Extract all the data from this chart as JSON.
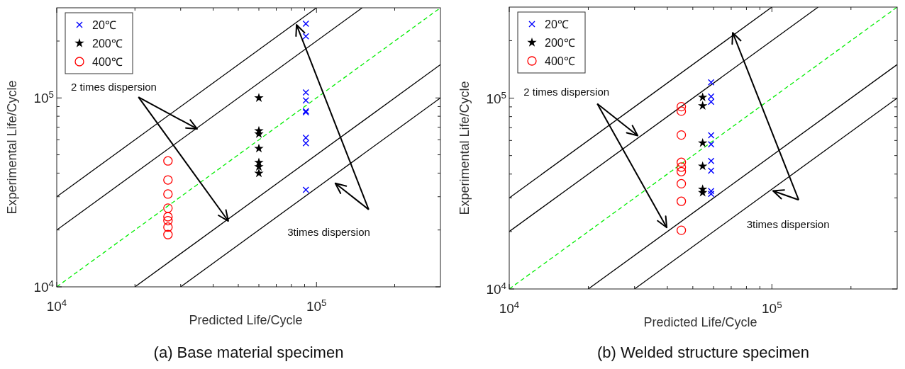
{
  "chart_data": [
    {
      "type": "scatter",
      "title": "(a) Base material specimen",
      "xlabel": "Predicted Life/Cycle",
      "ylabel": "Experimental Life/Cycle",
      "log": "xy",
      "xlim": [
        10000,
        300000
      ],
      "ylim": [
        10000,
        300000
      ],
      "xticks": [
        {
          "value": 10000,
          "label": "10$^{4}$"
        },
        {
          "value": 20000,
          "label": null
        },
        {
          "value": 30000,
          "label": null
        },
        {
          "value": 40000,
          "label": null
        },
        {
          "value": 50000,
          "label": null
        },
        {
          "value": 60000,
          "label": null
        },
        {
          "value": 70000,
          "label": null
        },
        {
          "value": 80000,
          "label": null
        },
        {
          "value": 90000,
          "label": null
        },
        {
          "value": 100000,
          "label": "10$^{5}$"
        },
        {
          "value": 200000,
          "label": null
        }
      ],
      "yticks": [
        {
          "value": 10000,
          "label": "10$^{4}$"
        },
        {
          "value": 20000,
          "label": null
        },
        {
          "value": 30000,
          "label": null
        },
        {
          "value": 40000,
          "label": null
        },
        {
          "value": 50000,
          "label": null
        },
        {
          "value": 60000,
          "label": null
        },
        {
          "value": 70000,
          "label": null
        },
        {
          "value": 80000,
          "label": null
        },
        {
          "value": 90000,
          "label": null
        },
        {
          "value": 100000,
          "label": "10$^{5}$"
        },
        {
          "value": 200000,
          "label": null
        }
      ],
      "grid": false,
      "legend": "top left",
      "annotations": [
        "2 times dispersion",
        "3times dispersion"
      ],
      "series": [
        {
          "type": "line",
          "color": "#000000",
          "line_style": "solid",
          "x": [
            10000,
            150000
          ],
          "values": [
            20000,
            300000
          ]
        },
        {
          "type": "line",
          "color": "#000000",
          "line_style": "solid",
          "x": [
            10000,
            100000
          ],
          "values": [
            30000,
            300000
          ]
        },
        {
          "type": "line",
          "color": "#000000",
          "line_style": "solid",
          "x": [
            20000,
            300000
          ],
          "values": [
            10000,
            150000
          ]
        },
        {
          "type": "line",
          "color": "#000000",
          "line_style": "solid",
          "x": [
            30000,
            300000
          ],
          "values": [
            10000,
            100000
          ]
        },
        {
          "type": "line",
          "color": "#00ee00",
          "line_style": "dashed",
          "x": [
            10000,
            300000
          ],
          "values": [
            10000,
            300000
          ]
        },
        {
          "name": "20℃",
          "color": "#0000ff",
          "marker": "cross",
          "x": [
            91000,
            91000,
            91000,
            91000,
            91000,
            91000,
            91000,
            91000,
            91000
          ],
          "values": [
            247000,
            212000,
            107000,
            97000,
            85000,
            84000,
            61500,
            57500,
            32600
          ]
        },
        {
          "name": "200℃",
          "color": "#000000",
          "marker": "star",
          "x": [
            60000,
            60000,
            60000,
            60000,
            60000,
            60000,
            60000
          ],
          "values": [
            100000,
            67000,
            64500,
            54000,
            45500,
            43200,
            39900
          ]
        },
        {
          "name": "400℃",
          "color": "#ff0000",
          "marker": "circle",
          "x": [
            26800,
            26800,
            26800,
            26800,
            26800,
            26800,
            26800,
            26800
          ],
          "values": [
            46400,
            36800,
            31000,
            26100,
            23500,
            22400,
            20700,
            18900
          ]
        }
      ]
    },
    {
      "type": "scatter",
      "title": "(b) Welded structure specimen",
      "xlabel": "Predicted Life/Cycle",
      "ylabel": "Experimental Life/Cycle",
      "log": "xy",
      "xlim": [
        10000,
        300000
      ],
      "ylim": [
        10000,
        300000
      ],
      "xticks": [
        {
          "value": 10000,
          "label": "10$^{4}$"
        },
        {
          "value": 20000,
          "label": null
        },
        {
          "value": 30000,
          "label": null
        },
        {
          "value": 40000,
          "label": null
        },
        {
          "value": 50000,
          "label": null
        },
        {
          "value": 60000,
          "label": null
        },
        {
          "value": 70000,
          "label": null
        },
        {
          "value": 80000,
          "label": null
        },
        {
          "value": 90000,
          "label": null
        },
        {
          "value": 100000,
          "label": "10$^{5}$"
        },
        {
          "value": 200000,
          "label": null
        }
      ],
      "yticks": [
        {
          "value": 10000,
          "label": "10$^{4}$"
        },
        {
          "value": 20000,
          "label": null
        },
        {
          "value": 30000,
          "label": null
        },
        {
          "value": 40000,
          "label": null
        },
        {
          "value": 50000,
          "label": null
        },
        {
          "value": 60000,
          "label": null
        },
        {
          "value": 70000,
          "label": null
        },
        {
          "value": 80000,
          "label": null
        },
        {
          "value": 90000,
          "label": null
        },
        {
          "value": 100000,
          "label": "10$^{5}$"
        },
        {
          "value": 200000,
          "label": null
        }
      ],
      "grid": false,
      "legend": "top left",
      "annotations": [
        "2 times dispersion",
        "3times dispersion"
      ],
      "series": [
        {
          "type": "line",
          "color": "#000000",
          "line_style": "solid",
          "x": [
            10000,
            150000
          ],
          "values": [
            20000,
            300000
          ]
        },
        {
          "type": "line",
          "color": "#000000",
          "line_style": "solid",
          "x": [
            10000,
            100000
          ],
          "values": [
            30000,
            300000
          ]
        },
        {
          "type": "line",
          "color": "#000000",
          "line_style": "solid",
          "x": [
            20000,
            300000
          ],
          "values": [
            10000,
            150000
          ]
        },
        {
          "type": "line",
          "color": "#000000",
          "line_style": "solid",
          "x": [
            30000,
            300000
          ],
          "values": [
            10000,
            100000
          ]
        },
        {
          "type": "line",
          "color": "#00ee00",
          "line_style": "dashed",
          "x": [
            10000,
            300000
          ],
          "values": [
            10000,
            300000
          ]
        },
        {
          "name": "20℃",
          "color": "#0000ff",
          "marker": "cross",
          "x": [
            58700,
            58700,
            58700,
            58700,
            58700,
            58700,
            58700,
            58700,
            58700
          ],
          "values": [
            121000,
            102000,
            95700,
            63900,
            57300,
            46900,
            41700,
            32600,
            31500
          ]
        },
        {
          "name": "200℃",
          "color": "#000000",
          "marker": "star",
          "x": [
            54500,
            54500,
            54500,
            54500,
            54500,
            54500
          ],
          "values": [
            101000,
            91200,
            58200,
            44000,
            33300,
            32000
          ]
        },
        {
          "name": "400℃",
          "color": "#ff0000",
          "marker": "circle",
          "x": [
            45200,
            45200,
            45200,
            45200,
            45200,
            45200,
            45200,
            45200,
            45200
          ],
          "values": [
            90200,
            85500,
            64100,
            46100,
            43500,
            41200,
            35600,
            28800,
            20300
          ]
        }
      ]
    }
  ]
}
